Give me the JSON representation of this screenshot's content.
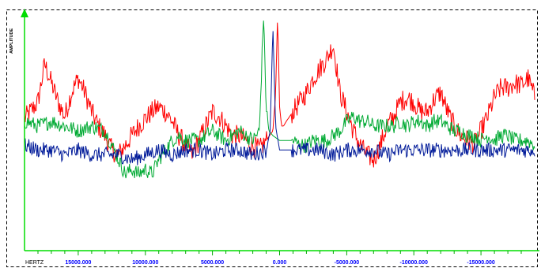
{
  "chart_data": {
    "type": "line",
    "title": "",
    "xlabel": "HERTZ",
    "ylabel": "AMPLITUDE",
    "x_direction": "descending",
    "xlim": [
      19000,
      -19000
    ],
    "ylim": [
      0,
      100
    ],
    "grid": false,
    "legend": "none",
    "x_ticks": [
      15000,
      10000,
      5000,
      0,
      -5000,
      -10000,
      -15000
    ],
    "x_tick_labels": [
      "15000.000",
      "10000.000",
      "5000.000",
      "0.000",
      "-5000.000",
      "-10000.000",
      "-15000.000"
    ],
    "series": [
      {
        "color": "#ff0000",
        "x": [
          19000,
          18000,
          17500,
          17000,
          16500,
          16000,
          15500,
          15000,
          14500,
          14000,
          13500,
          13000,
          12500,
          12000,
          11500,
          11000,
          10500,
          10000,
          9500,
          9000,
          8500,
          8000,
          7500,
          7000,
          6500,
          6000,
          5500,
          5000,
          4500,
          4000,
          3500,
          3000,
          2500,
          2000,
          1500,
          1000,
          500,
          300,
          150,
          0,
          -150,
          -300,
          -500,
          -1000,
          -1500,
          -2000,
          -2500,
          -3000,
          -3500,
          -4000,
          -4500,
          -5000,
          -5500,
          -6000,
          -6500,
          -7000,
          -7500,
          -8000,
          -8500,
          -9000,
          -9500,
          -10000,
          -10500,
          -11000,
          -11500,
          -12000,
          -12500,
          -13000,
          -13500,
          -14000,
          -14500,
          -15000,
          -15500,
          -16000,
          -16500,
          -17000,
          -17500,
          -18000,
          -18500,
          -19000
        ],
        "y": [
          55,
          62,
          78,
          70,
          62,
          56,
          66,
          72,
          66,
          58,
          52,
          48,
          42,
          40,
          44,
          48,
          52,
          55,
          58,
          60,
          58,
          54,
          48,
          44,
          40,
          46,
          52,
          58,
          56,
          52,
          48,
          48,
          46,
          44,
          42,
          46,
          50,
          65,
          98,
          60,
          52,
          52,
          54,
          58,
          62,
          66,
          72,
          76,
          80,
          86,
          66,
          58,
          50,
          44,
          40,
          38,
          44,
          52,
          56,
          62,
          64,
          62,
          58,
          58,
          63,
          66,
          58,
          52,
          48,
          46,
          44,
          50,
          56,
          64,
          68,
          68,
          70,
          69,
          72,
          64
        ]
      },
      {
        "color": "#00aa33",
        "x": [
          19000,
          18000,
          17000,
          16000,
          15000,
          14000,
          13000,
          12500,
          12000,
          11500,
          11000,
          10500,
          10000,
          9500,
          9000,
          8500,
          8000,
          7500,
          7000,
          6500,
          6000,
          5500,
          5000,
          4500,
          4000,
          3500,
          3000,
          2500,
          2000,
          1500,
          1200,
          1000,
          800,
          500,
          0,
          -500,
          -1000,
          -1500,
          -2000,
          -2500,
          -3000,
          -3500,
          -4000,
          -4500,
          -5000,
          -5500,
          -6000,
          -6500,
          -7000,
          -7500,
          -8000,
          -8500,
          -9000,
          -9500,
          -10000,
          -10500,
          -11000,
          -11500,
          -12000,
          -12500,
          -13000,
          -13500,
          -14000,
          -14500,
          -15000,
          -15500,
          -16000,
          -16500,
          -17000,
          -17500,
          -18000,
          -18500,
          -19000
        ],
        "y": [
          54,
          52,
          54,
          52,
          50,
          52,
          50,
          44,
          38,
          32,
          34,
          32,
          34,
          32,
          38,
          42,
          46,
          48,
          46,
          46,
          46,
          48,
          50,
          48,
          46,
          48,
          50,
          48,
          46,
          50,
          99,
          60,
          50,
          48,
          46,
          46,
          46,
          44,
          44,
          46,
          46,
          46,
          48,
          50,
          54,
          56,
          54,
          54,
          52,
          52,
          52,
          52,
          54,
          52,
          54,
          54,
          52,
          54,
          54,
          52,
          50,
          50,
          48,
          48,
          46,
          48,
          46,
          48,
          48,
          46,
          46,
          46,
          44
        ]
      },
      {
        "color": "#001a99",
        "x": [
          19000,
          18000,
          17000,
          16000,
          15000,
          14000,
          13000,
          12000,
          11000,
          10000,
          9000,
          8000,
          7000,
          6000,
          5000,
          4000,
          3000,
          2000,
          1000,
          700,
          500,
          300,
          0,
          -500,
          -1000,
          -2000,
          -3000,
          -4000,
          -5000,
          -6000,
          -7000,
          -8000,
          -9000,
          -10000,
          -11000,
          -12000,
          -13000,
          -14000,
          -15000,
          -16000,
          -17000,
          -18000,
          -19000
        ],
        "y": [
          44,
          42,
          42,
          40,
          42,
          40,
          40,
          40,
          38,
          40,
          42,
          40,
          42,
          42,
          40,
          42,
          42,
          40,
          42,
          50,
          94,
          52,
          42,
          42,
          42,
          42,
          42,
          40,
          42,
          42,
          42,
          40,
          42,
          42,
          42,
          42,
          42,
          42,
          42,
          42,
          42,
          42,
          42
        ]
      }
    ]
  }
}
